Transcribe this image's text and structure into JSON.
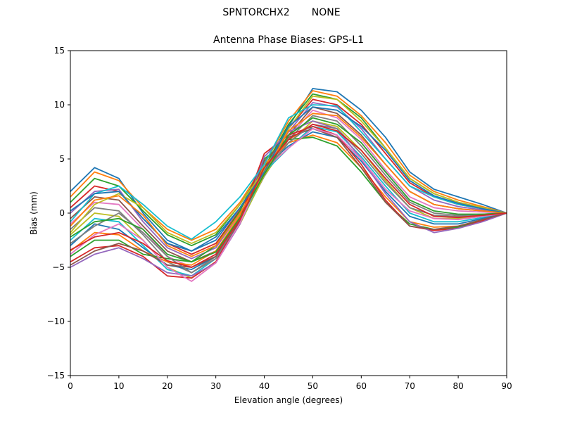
{
  "chart_data": {
    "type": "line",
    "suptitle_left": "SPNTORCHX2",
    "suptitle_right": "NONE",
    "title": "Antenna Phase Biases: GPS-L1",
    "xlabel": "Elevation angle (degrees)",
    "ylabel": "Bias (mm)",
    "xlim": [
      0,
      90
    ],
    "ylim": [
      -15,
      15
    ],
    "xticks": [
      0,
      10,
      20,
      30,
      40,
      50,
      60,
      70,
      80,
      90
    ],
    "yticks": [
      -15,
      -10,
      -5,
      0,
      5,
      10,
      15
    ],
    "grid": false,
    "x": [
      0,
      5,
      10,
      15,
      20,
      25,
      30,
      35,
      40,
      45,
      50,
      55,
      60,
      65,
      70,
      75,
      80,
      85,
      90
    ],
    "series": [
      {
        "color": "#1f77b4",
        "values": [
          2.0,
          4.2,
          3.2,
          0.0,
          -2.5,
          -3.5,
          -2.5,
          0.5,
          4.0,
          8.0,
          11.5,
          11.2,
          9.5,
          7.0,
          3.8,
          2.2,
          1.5,
          0.8,
          0.0
        ]
      },
      {
        "color": "#ff7f0e",
        "values": [
          1.5,
          3.8,
          3.0,
          0.5,
          -1.5,
          -2.5,
          -1.5,
          1.0,
          4.5,
          8.5,
          11.3,
          10.8,
          9.0,
          6.5,
          3.5,
          2.0,
          1.2,
          0.6,
          0.0
        ]
      },
      {
        "color": "#2ca02c",
        "values": [
          1.0,
          3.2,
          2.5,
          0.2,
          -2.0,
          -3.0,
          -2.0,
          0.8,
          4.2,
          8.2,
          11.0,
          10.5,
          8.8,
          6.0,
          3.2,
          1.8,
          1.0,
          0.5,
          0.0
        ]
      },
      {
        "color": "#d62728",
        "values": [
          0.5,
          2.5,
          2.0,
          -0.5,
          -2.8,
          -3.8,
          -2.8,
          0.3,
          4.0,
          7.8,
          10.5,
          10.0,
          8.2,
          5.5,
          2.8,
          1.5,
          0.8,
          0.4,
          0.0
        ]
      },
      {
        "color": "#9467bd",
        "values": [
          0.0,
          2.0,
          2.2,
          -0.8,
          -3.2,
          -4.2,
          -3.2,
          0.0,
          3.8,
          7.5,
          10.2,
          9.8,
          7.8,
          5.0,
          2.5,
          1.2,
          0.6,
          0.3,
          0.0
        ]
      },
      {
        "color": "#8c564b",
        "values": [
          -0.5,
          1.5,
          1.2,
          -1.2,
          -3.5,
          -4.5,
          -3.5,
          -0.3,
          3.6,
          7.2,
          9.8,
          9.2,
          7.2,
          4.5,
          2.0,
          0.8,
          0.4,
          0.2,
          0.0
        ]
      },
      {
        "color": "#e377c2",
        "values": [
          -1.0,
          1.0,
          0.8,
          -1.5,
          -4.0,
          -5.0,
          -3.8,
          -0.5,
          3.5,
          7.0,
          9.5,
          8.8,
          6.8,
          4.0,
          1.5,
          0.5,
          0.2,
          0.1,
          0.0
        ]
      },
      {
        "color": "#7f7f7f",
        "values": [
          -1.5,
          0.5,
          0.2,
          -2.0,
          -4.5,
          -5.5,
          -4.0,
          -0.8,
          3.4,
          6.8,
          9.0,
          8.5,
          6.2,
          3.5,
          1.0,
          0.0,
          -0.2,
          -0.1,
          0.0
        ]
      },
      {
        "color": "#bcbd22",
        "values": [
          -2.0,
          0.0,
          -0.3,
          -2.5,
          -5.0,
          -6.0,
          -4.5,
          -1.0,
          3.5,
          6.5,
          8.5,
          8.0,
          5.8,
          3.0,
          0.5,
          -0.5,
          -0.5,
          -0.3,
          0.0
        ]
      },
      {
        "color": "#17becf",
        "values": [
          -2.5,
          -0.5,
          -0.8,
          -3.0,
          -5.2,
          -5.8,
          -4.2,
          -0.9,
          3.8,
          6.0,
          8.0,
          7.5,
          5.2,
          2.5,
          0.0,
          -0.8,
          -0.8,
          -0.4,
          0.0
        ]
      },
      {
        "color": "#1f77b4",
        "values": [
          -3.0,
          -1.0,
          -1.5,
          -3.2,
          -4.8,
          -5.2,
          -4.0,
          -0.6,
          4.2,
          6.2,
          7.5,
          7.0,
          4.8,
          2.0,
          -0.3,
          -1.0,
          -1.0,
          -0.5,
          0.0
        ]
      },
      {
        "color": "#ff7f0e",
        "values": [
          -3.5,
          -1.8,
          -2.0,
          -3.5,
          -4.5,
          -4.8,
          -3.5,
          -0.2,
          4.5,
          6.5,
          7.2,
          6.5,
          4.2,
          1.5,
          -0.8,
          -1.3,
          -1.2,
          -0.6,
          0.0
        ]
      },
      {
        "color": "#2ca02c",
        "values": [
          -4.0,
          -2.5,
          -2.5,
          -3.8,
          -4.2,
          -4.5,
          -3.0,
          0.2,
          5.0,
          6.8,
          7.0,
          6.2,
          3.8,
          1.0,
          -1.0,
          -1.5,
          -1.3,
          -0.7,
          0.0
        ]
      },
      {
        "color": "#d62728",
        "values": [
          -4.5,
          -3.2,
          -3.0,
          -4.0,
          -5.8,
          -6.0,
          -4.5,
          -0.5,
          5.5,
          7.2,
          8.0,
          7.2,
          4.5,
          1.2,
          -1.2,
          -1.6,
          -1.4,
          -0.7,
          0.0
        ]
      },
      {
        "color": "#9467bd",
        "values": [
          -5.0,
          -3.8,
          -3.2,
          -4.2,
          -5.5,
          -5.8,
          -4.6,
          -1.0,
          5.2,
          7.5,
          8.5,
          7.8,
          5.0,
          1.8,
          -0.8,
          -1.8,
          -1.4,
          -0.8,
          0.0
        ]
      },
      {
        "color": "#8c564b",
        "values": [
          -4.8,
          -3.5,
          -2.8,
          -3.5,
          -4.8,
          -5.0,
          -4.0,
          -0.8,
          4.8,
          7.0,
          7.8,
          7.0,
          4.2,
          1.0,
          -1.2,
          -1.5,
          -1.2,
          -0.6,
          0.0
        ]
      },
      {
        "color": "#e377c2",
        "values": [
          -3.8,
          -2.0,
          -1.0,
          -2.5,
          -5.0,
          -6.3,
          -4.6,
          -0.9,
          4.0,
          6.0,
          7.8,
          7.2,
          5.0,
          2.2,
          0.2,
          -0.5,
          -0.6,
          -0.3,
          0.0
        ]
      },
      {
        "color": "#7f7f7f",
        "values": [
          -2.8,
          -1.2,
          0.0,
          -1.8,
          -4.0,
          -5.5,
          -4.2,
          -0.5,
          3.8,
          6.5,
          8.2,
          7.8,
          5.5,
          2.8,
          0.5,
          -0.2,
          -0.3,
          -0.2,
          0.0
        ]
      },
      {
        "color": "#bcbd22",
        "values": [
          -1.8,
          0.8,
          1.8,
          0.5,
          -1.8,
          -2.8,
          -1.8,
          0.8,
          4.0,
          7.8,
          10.8,
          10.5,
          8.5,
          6.0,
          3.2,
          1.8,
          1.0,
          0.5,
          0.0
        ]
      },
      {
        "color": "#17becf",
        "values": [
          -0.8,
          1.8,
          2.5,
          0.8,
          -1.2,
          -2.4,
          -0.8,
          1.5,
          4.5,
          8.8,
          10.0,
          9.9,
          7.5,
          5.0,
          2.5,
          1.5,
          0.8,
          0.4,
          0.0
        ]
      },
      {
        "color": "#1f77b4",
        "values": [
          0.2,
          1.8,
          2.0,
          -0.5,
          -2.8,
          -3.5,
          -2.2,
          0.5,
          3.8,
          8.0,
          9.8,
          9.5,
          8.0,
          5.8,
          3.0,
          1.6,
          0.9,
          0.4,
          0.0
        ]
      },
      {
        "color": "#ff7f0e",
        "values": [
          -1.2,
          1.2,
          1.6,
          -0.2,
          -3.0,
          -4.0,
          -3.0,
          0.0,
          3.6,
          7.6,
          9.2,
          9.0,
          7.0,
          4.5,
          2.0,
          0.8,
          0.4,
          0.2,
          0.0
        ]
      },
      {
        "color": "#2ca02c",
        "values": [
          -2.2,
          -0.8,
          -0.5,
          -1.5,
          -3.8,
          -4.5,
          -3.6,
          -0.4,
          3.6,
          7.2,
          8.8,
          8.2,
          6.5,
          3.8,
          1.2,
          0.2,
          -0.1,
          -0.1,
          0.0
        ]
      },
      {
        "color": "#d62728",
        "values": [
          -3.4,
          -2.2,
          -1.8,
          -2.8,
          -4.4,
          -5.0,
          -3.8,
          -0.6,
          4.2,
          6.8,
          8.2,
          7.6,
          5.8,
          3.2,
          0.8,
          -0.3,
          -0.4,
          -0.2,
          0.0
        ]
      }
    ]
  }
}
